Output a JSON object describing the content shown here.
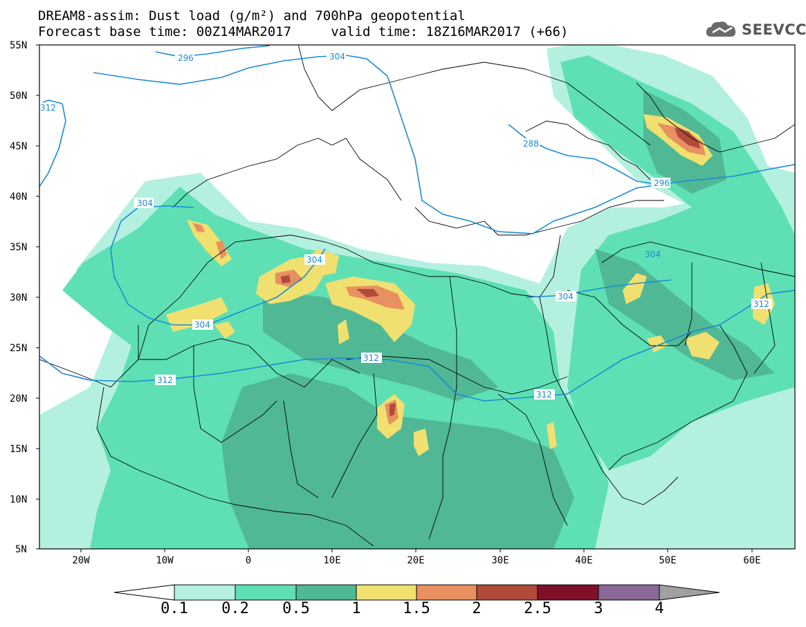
{
  "header": {
    "title_line1": "DREAM8-assim: Dust load (g/m²) and 700hPa geopotential",
    "title_line2": "Forecast base time: 00Z14MAR2017     valid time: 18Z16MAR2017 (+66)"
  },
  "logo": {
    "text": "SEEVCCC",
    "icon": "cloud-logo-icon"
  },
  "map": {
    "lat_labels": [
      "55N",
      "50N",
      "45N",
      "40N",
      "35N",
      "30N",
      "25N",
      "20N",
      "15N",
      "10N",
      "5N"
    ],
    "lon_labels": [
      "20W",
      "10W",
      "0",
      "10E",
      "20E",
      "30E",
      "40E",
      "50E",
      "60E"
    ],
    "contour_labels": [
      "296",
      "304",
      "312",
      "304",
      "288",
      "296",
      "304",
      "304",
      "304",
      "304",
      "312",
      "312",
      "312",
      "312"
    ],
    "colors": {
      "contour": "#1a8ad4",
      "boundary": "#000000"
    }
  },
  "legend": {
    "labels": [
      "0.1",
      "0.2",
      "0.5",
      "1",
      "1.5",
      "2",
      "2.5",
      "3",
      "4"
    ],
    "colors": [
      "#ffffff",
      "#b4f0e0",
      "#5ee0b4",
      "#50b894",
      "#f0e070",
      "#e89060",
      "#b04a3a",
      "#80102a",
      "#8a6898",
      "#a0a0a0"
    ]
  }
}
